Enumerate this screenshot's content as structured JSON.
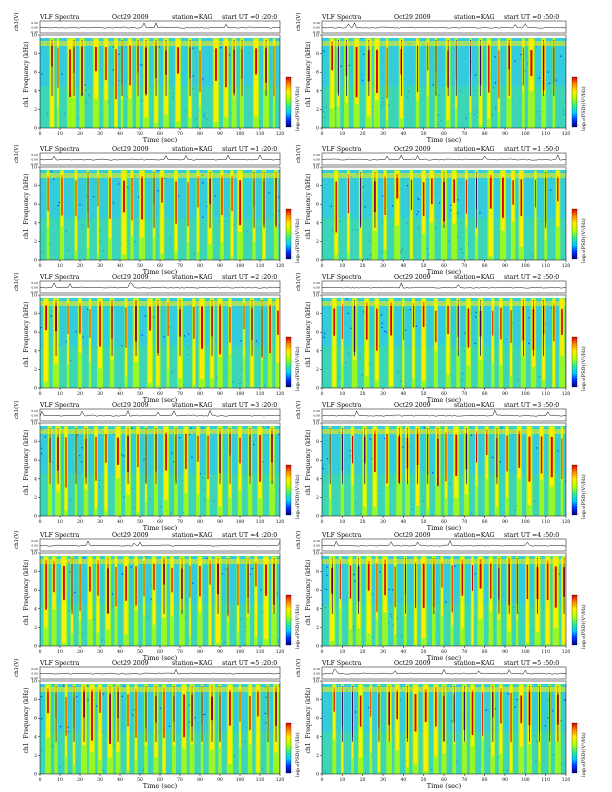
{
  "colors": {
    "bg": "#33ccdd",
    "colormap": [
      "#000080",
      "#0033ff",
      "#00ccff",
      "#33ee88",
      "#b0ff00",
      "#ffee00",
      "#ff8800",
      "#dd0000"
    ]
  },
  "colorbar_label": "log₁₀(PSD)(V²/Hz)",
  "colorbar_ticks": [
    "-",
    "-",
    "-"
  ],
  "ch_label": "ch1(V)",
  "ch_ticks": [
    "0.20",
    "0.00",
    "-0.20"
  ],
  "ylabel": "ch1  Frequency (kHz)",
  "xlabel": "Time (sec)",
  "chart_data": [
    {
      "type": "heatmap",
      "panel": "0:20",
      "title_left": "VLF Spectra",
      "title_date": "Oct29 2009",
      "title_station": "station=KAG",
      "title_start": "start UT =0 :20:0",
      "x": [
        0,
        10,
        20,
        30,
        40,
        50,
        60,
        70,
        80,
        90,
        100,
        110,
        120
      ],
      "y": [
        0,
        2,
        4,
        6,
        8,
        10
      ],
      "xlim": [
        0,
        120
      ],
      "ylim": [
        0,
        10
      ],
      "bursts": [
        6,
        9,
        15,
        17,
        21,
        28,
        33,
        38,
        41,
        45,
        49,
        53,
        58,
        63,
        69,
        75,
        80,
        88,
        93,
        97,
        101,
        108,
        113,
        117
      ]
    },
    {
      "type": "heatmap",
      "panel": "0:50",
      "title_left": "VLF Spectra",
      "title_date": "Oct29 2009",
      "title_station": "station=KAG",
      "title_start": "start UT =0 :50:0",
      "x": [
        0,
        10,
        20,
        30,
        40,
        50,
        60,
        70,
        80,
        90,
        100,
        110,
        120
      ],
      "y": [
        0,
        2,
        4,
        6,
        8,
        10
      ],
      "xlim": [
        0,
        120
      ],
      "ylim": [
        0,
        10
      ],
      "bursts": [
        5,
        8,
        12,
        17,
        23,
        27,
        32,
        39,
        47,
        52,
        56,
        62,
        66,
        73,
        78,
        82,
        87,
        92,
        99,
        103,
        109,
        114
      ]
    },
    {
      "type": "heatmap",
      "panel": "1:20",
      "title_left": "VLF Spectra",
      "title_date": "Oct29 2009",
      "title_station": "station=KAG",
      "title_start": "start UT =1 :20:0",
      "x": [
        0,
        10,
        20,
        30,
        40,
        50,
        60,
        70,
        80,
        90,
        100,
        110,
        120
      ],
      "y": [
        0,
        2,
        4,
        6,
        8,
        10
      ],
      "xlim": [
        0,
        120
      ],
      "ylim": [
        0,
        10
      ],
      "bursts": [
        4,
        11,
        18,
        24,
        29,
        35,
        42,
        46,
        51,
        57,
        61,
        68,
        74,
        79,
        85,
        91,
        96,
        100,
        107,
        112,
        118
      ]
    },
    {
      "type": "heatmap",
      "panel": "1:50",
      "title_left": "VLF Spectra",
      "title_date": "Oct29 2009",
      "title_station": "station=KAG",
      "title_start": "start UT =1 :50:0",
      "x": [
        0,
        10,
        20,
        30,
        40,
        50,
        60,
        70,
        80,
        90,
        100,
        110,
        120
      ],
      "y": [
        0,
        2,
        4,
        6,
        8,
        10
      ],
      "xlim": [
        0,
        120
      ],
      "ylim": [
        0,
        10
      ],
      "bursts": [
        7,
        13,
        19,
        26,
        31,
        37,
        44,
        50,
        54,
        60,
        65,
        71,
        76,
        83,
        89,
        94,
        98,
        105,
        110,
        116
      ]
    },
    {
      "type": "heatmap",
      "panel": "2:20",
      "title_left": "VLF Spectra",
      "title_date": "Oct29 2009",
      "title_station": "station=KAG",
      "title_start": "start UT =2 :20:0",
      "x": [
        0,
        10,
        20,
        30,
        40,
        50,
        60,
        70,
        80,
        90,
        100,
        110,
        120
      ],
      "y": [
        0,
        2,
        4,
        6,
        8,
        10
      ],
      "xlim": [
        0,
        120
      ],
      "ylim": [
        0,
        10
      ],
      "bursts": [
        3,
        8,
        14,
        20,
        25,
        30,
        36,
        43,
        48,
        55,
        59,
        64,
        70,
        77,
        81,
        86,
        90,
        95,
        102,
        106,
        111,
        115,
        119
      ]
    },
    {
      "type": "heatmap",
      "panel": "2:50",
      "title_left": "VLF Spectra",
      "title_date": "Oct29 2009",
      "title_station": "station=KAG",
      "title_start": "start UT =2 :50:0",
      "x": [
        0,
        10,
        20,
        30,
        40,
        50,
        60,
        70,
        80,
        90,
        100,
        110,
        120
      ],
      "y": [
        0,
        2,
        4,
        6,
        8,
        10
      ],
      "xlim": [
        0,
        120
      ],
      "ylim": [
        0,
        10
      ],
      "bursts": [
        6,
        10,
        16,
        22,
        27,
        34,
        40,
        45,
        50,
        56,
        62,
        67,
        72,
        78,
        84,
        88,
        93,
        99,
        104,
        109,
        114,
        118
      ]
    },
    {
      "type": "heatmap",
      "panel": "3:20",
      "title_left": "VLF Spectra",
      "title_date": "Oct29 2009",
      "title_station": "station=KAG",
      "title_start": "start UT =3 :20:0",
      "x": [
        0,
        10,
        20,
        30,
        40,
        50,
        60,
        70,
        80,
        90,
        100,
        110,
        120
      ],
      "y": [
        0,
        2,
        4,
        6,
        8,
        10
      ],
      "xlim": [
        0,
        120
      ],
      "ylim": [
        0,
        10
      ],
      "bursts": [
        5,
        9,
        13,
        18,
        23,
        28,
        33,
        39,
        44,
        49,
        53,
        58,
        63,
        68,
        73,
        79,
        84,
        90,
        95,
        100,
        105,
        110,
        116
      ]
    },
    {
      "type": "heatmap",
      "panel": "3:50",
      "title_left": "VLF Spectra",
      "title_date": "Oct29 2009",
      "title_station": "station=KAG",
      "title_start": "start UT =3 :50:0",
      "x": [
        0,
        10,
        20,
        30,
        40,
        50,
        60,
        70,
        80,
        90,
        100,
        110,
        120
      ],
      "y": [
        0,
        2,
        4,
        6,
        8,
        10
      ],
      "xlim": [
        0,
        120
      ],
      "ylim": [
        0,
        10
      ],
      "bursts": [
        4,
        10,
        15,
        21,
        26,
        32,
        38,
        42,
        47,
        52,
        57,
        61,
        66,
        71,
        76,
        81,
        86,
        91,
        97,
        102,
        108,
        113,
        118
      ]
    },
    {
      "type": "heatmap",
      "panel": "4:20",
      "title_left": "VLF Spectra",
      "title_date": "Oct29 2009",
      "title_station": "station=KAG",
      "title_start": "start UT =4 :20:0",
      "x": [
        0,
        10,
        20,
        30,
        40,
        50,
        60,
        70,
        80,
        90,
        100,
        110,
        120
      ],
      "y": [
        0,
        2,
        4,
        6,
        8,
        10
      ],
      "xlim": [
        0,
        120
      ],
      "ylim": [
        0,
        10
      ],
      "bursts": [
        3,
        7,
        12,
        16,
        20,
        25,
        29,
        34,
        38,
        43,
        48,
        52,
        57,
        62,
        66,
        71,
        75,
        80,
        85,
        89,
        94,
        99,
        104,
        108,
        113,
        117
      ]
    },
    {
      "type": "heatmap",
      "panel": "4:50",
      "title_left": "VLF Spectra",
      "title_date": "Oct29 2009",
      "title_station": "station=KAG",
      "title_start": "start UT =4 :50:0",
      "x": [
        0,
        10,
        20,
        30,
        40,
        50,
        60,
        70,
        80,
        90,
        100,
        110,
        120
      ],
      "y": [
        0,
        2,
        4,
        6,
        8,
        10
      ],
      "xlim": [
        0,
        120
      ],
      "ylim": [
        0,
        10
      ],
      "bursts": [
        5,
        9,
        14,
        18,
        23,
        27,
        31,
        36,
        41,
        46,
        50,
        55,
        59,
        64,
        69,
        74,
        78,
        83,
        87,
        92,
        96,
        101,
        106,
        111,
        115,
        119
      ]
    },
    {
      "type": "heatmap",
      "panel": "5:20",
      "title_left": "VLF Spectra",
      "title_date": "Oct29 2009",
      "title_station": "station=KAG",
      "title_start": "start UT =5 :20:0",
      "x": [
        0,
        10,
        20,
        30,
        40,
        50,
        60,
        70,
        80,
        90,
        100,
        110,
        120
      ],
      "y": [
        0,
        2,
        4,
        6,
        8,
        10
      ],
      "xlim": [
        0,
        120
      ],
      "ylim": [
        0,
        10
      ],
      "bursts": [
        4,
        8,
        13,
        17,
        22,
        26,
        30,
        35,
        39,
        44,
        48,
        53,
        58,
        62,
        67,
        72,
        76,
        81,
        86,
        90,
        95,
        100,
        105,
        109,
        114,
        118
      ]
    },
    {
      "type": "heatmap",
      "panel": "5:50",
      "title_left": "VLF Spectra",
      "title_date": "Oct29 2009",
      "title_station": "station=KAG",
      "title_start": "start UT =5 :50:0",
      "x": [
        0,
        10,
        20,
        30,
        40,
        50,
        60,
        70,
        80,
        90,
        100,
        110,
        120
      ],
      "y": [
        0,
        2,
        4,
        6,
        8,
        10
      ],
      "xlim": [
        0,
        120
      ],
      "ylim": [
        0,
        10
      ],
      "bursts": [
        6,
        10,
        15,
        19,
        24,
        28,
        33,
        37,
        42,
        46,
        51,
        56,
        60,
        65,
        70,
        74,
        79,
        84,
        88,
        93,
        98,
        102,
        107,
        112,
        116
      ]
    }
  ]
}
